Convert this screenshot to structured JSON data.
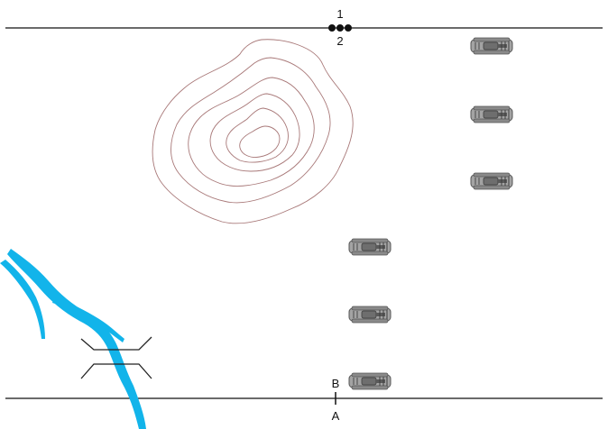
{
  "map": {
    "colors": {
      "background": "#ffffff",
      "boundary_line": "#111111",
      "contour": "#a87878",
      "river": "#12b4ea",
      "bridge": "#222222",
      "unit_body": "#9a9a9a",
      "unit_dark": "#4a4a4a"
    },
    "top_line": {
      "label_above": "1",
      "label_below": "2",
      "marker": "three-dots"
    },
    "bottom_line": {
      "label_above": "B",
      "label_below": "A",
      "marker": "tick"
    },
    "terrain": {
      "hill": {
        "contour_count": 6
      },
      "river": {
        "icon": "river-icon"
      },
      "bridge": {
        "icon": "bridge-icon"
      }
    },
    "units": [
      {
        "id": "unit-1",
        "icon": "tank-icon"
      },
      {
        "id": "unit-2",
        "icon": "tank-icon"
      },
      {
        "id": "unit-3",
        "icon": "tank-icon"
      },
      {
        "id": "unit-4",
        "icon": "tank-icon"
      },
      {
        "id": "unit-5",
        "icon": "tank-icon"
      },
      {
        "id": "unit-6",
        "icon": "tank-icon"
      }
    ]
  }
}
